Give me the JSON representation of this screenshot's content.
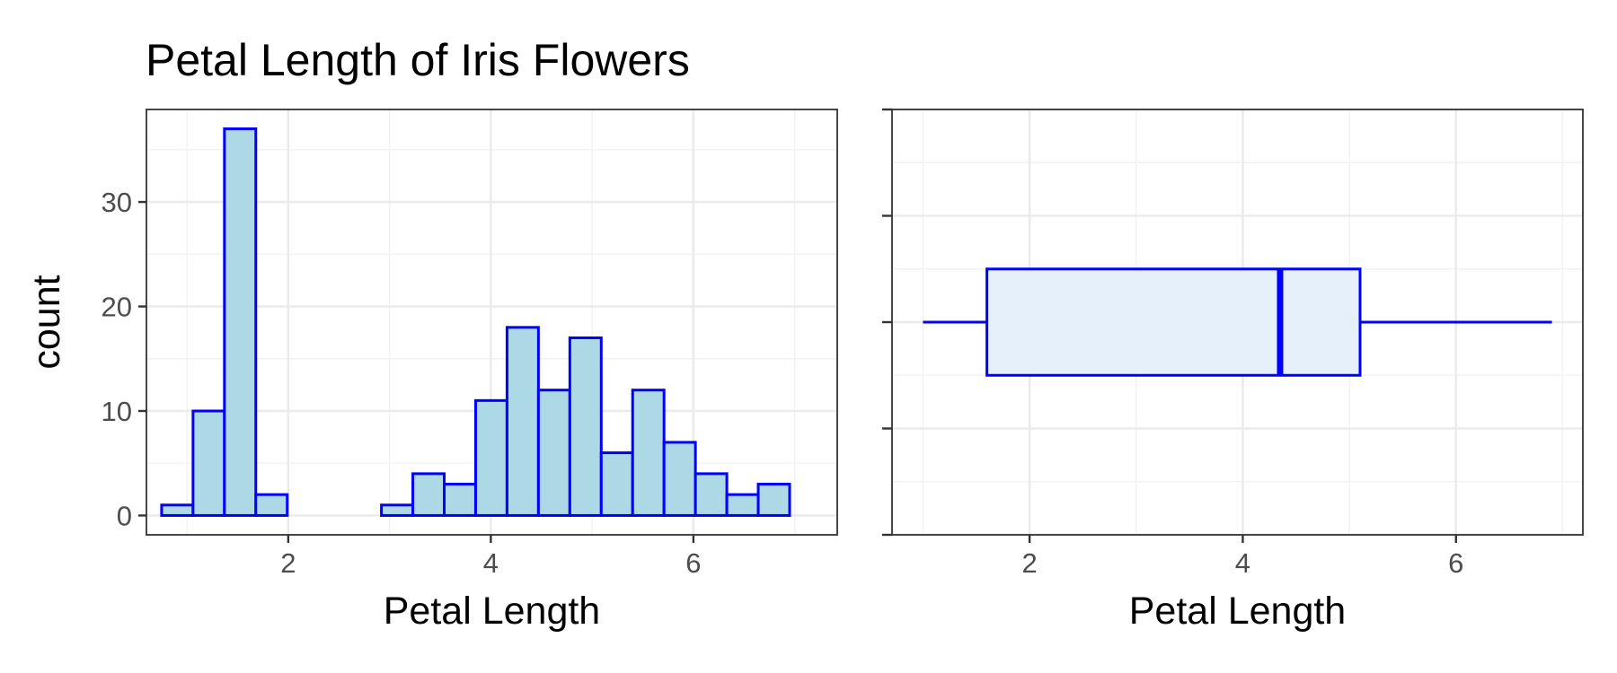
{
  "title": "Petal Length of Iris Flowers",
  "chart_data": [
    {
      "type": "bar",
      "subtype": "histogram",
      "xlabel": "Petal Length",
      "ylabel": "count",
      "xlim": [
        0.6,
        7.42
      ],
      "ylim": [
        -1.85,
        38.85
      ],
      "x_ticks": [
        2,
        4,
        6
      ],
      "x_tick_labels": [
        "2",
        "4",
        "6"
      ],
      "x_minor_ticks": [
        1,
        3,
        5,
        7
      ],
      "y_ticks": [
        0,
        10,
        20,
        30
      ],
      "y_tick_labels": [
        "0",
        "10",
        "20",
        "30"
      ],
      "y_minor_ticks": [
        5,
        15,
        25,
        35
      ],
      "grid": true,
      "bin_width": 0.31,
      "bins_start": [
        0.75,
        1.06,
        1.37,
        1.68,
        1.99,
        2.3,
        2.61,
        2.92,
        3.23,
        3.54,
        3.85,
        4.16,
        4.47,
        4.78,
        5.09,
        5.4,
        5.71,
        6.02,
        6.33,
        6.64
      ],
      "values": [
        1,
        10,
        37,
        2,
        0,
        0,
        0,
        1,
        4,
        3,
        11,
        18,
        12,
        17,
        6,
        12,
        7,
        4,
        2,
        3
      ],
      "fill_color": "#add8e6",
      "stroke_color": "#0000ff"
    },
    {
      "type": "box",
      "orientation": "horizontal",
      "xlabel": "Petal Length",
      "ylabel": "",
      "xlim": [
        0.71,
        7.19
      ],
      "ylim": [
        -0.4,
        0.4
      ],
      "x_ticks": [
        2,
        4,
        6
      ],
      "x_tick_labels": [
        "2",
        "4",
        "6"
      ],
      "x_minor_ticks": [
        1,
        3,
        5,
        7
      ],
      "y_ticks": [
        -0.4,
        -0.2,
        0,
        0.2,
        0.4
      ],
      "y_minor_ticks": [
        -0.3,
        -0.1,
        0.1,
        0.3
      ],
      "grid": true,
      "stats": {
        "min": 1.0,
        "q1": 1.6,
        "median": 4.35,
        "q3": 5.1,
        "max": 6.9
      },
      "box_half_width": 0.1,
      "fill_color": "#e6f0fa",
      "stroke_color": "#0000ff"
    }
  ]
}
